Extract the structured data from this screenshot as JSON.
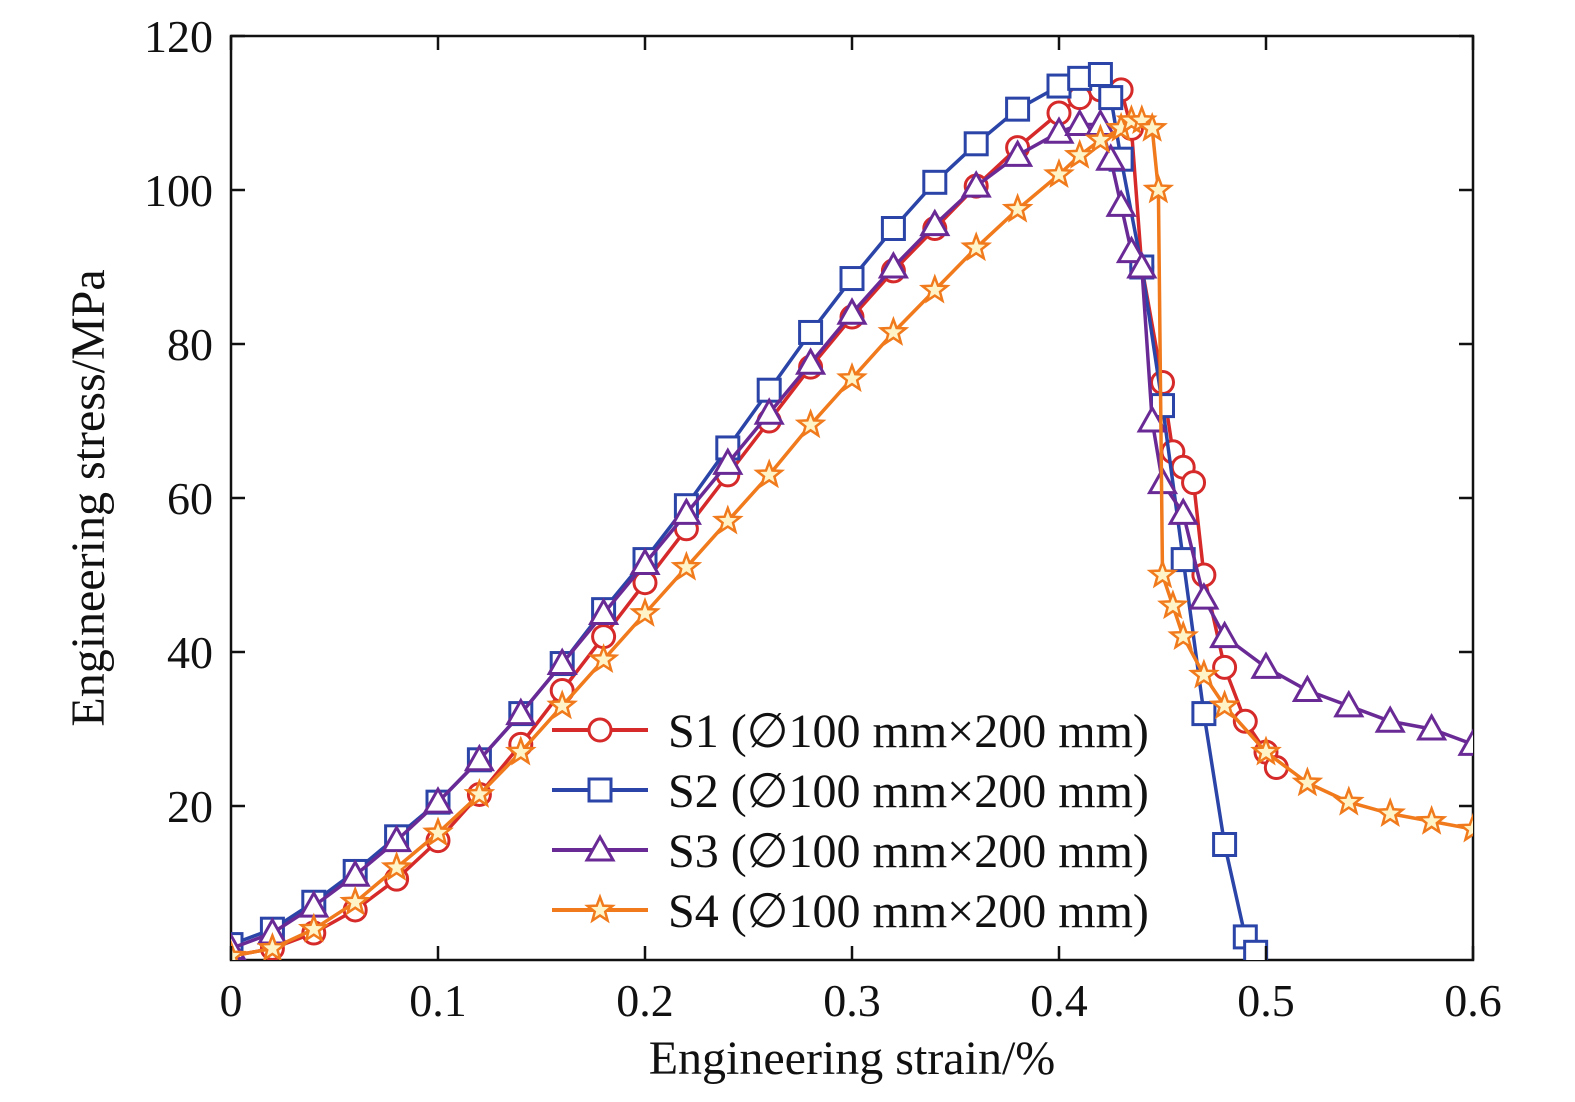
{
  "chart_data": {
    "type": "line",
    "title": "",
    "xlabel": "Engineering strain/%",
    "ylabel": "Engineering stress/MPa",
    "xlim": [
      0,
      0.6
    ],
    "ylim": [
      0,
      120
    ],
    "xticks": [
      0,
      0.1,
      0.2,
      0.3,
      0.4,
      0.5,
      0.6
    ],
    "xtick_labels": [
      "0",
      "0.1",
      "0.2",
      "0.3",
      "0.4",
      "0.5",
      "0.6"
    ],
    "yticks": [
      20,
      40,
      60,
      80,
      100,
      120
    ],
    "ytick_labels": [
      "20",
      "40",
      "60",
      "80",
      "100",
      "120"
    ],
    "grid": false,
    "legend_position": "bottom-center",
    "series": [
      {
        "name": "S1 (∅100 mm×200 mm)",
        "color": "#d62a2a",
        "marker": "circle",
        "x": [
          0.0,
          0.02,
          0.04,
          0.06,
          0.08,
          0.1,
          0.12,
          0.14,
          0.16,
          0.18,
          0.2,
          0.22,
          0.24,
          0.26,
          0.28,
          0.3,
          0.32,
          0.34,
          0.36,
          0.38,
          0.4,
          0.41,
          0.42,
          0.43,
          0.435,
          0.44,
          0.45,
          0.455,
          0.46,
          0.465,
          0.47,
          0.48,
          0.49,
          0.5,
          0.505
        ],
        "y": [
          0.5,
          1.5,
          3.5,
          6.5,
          10.5,
          15.5,
          21.5,
          28,
          35,
          42,
          49,
          56,
          63,
          70,
          77,
          83.5,
          89.5,
          95,
          100.5,
          105.5,
          110,
          112,
          113,
          113,
          108,
          90,
          75,
          66,
          64,
          62,
          50,
          38,
          31,
          27,
          25
        ]
      },
      {
        "name": "S2 (∅100 mm×200 mm)",
        "color": "#2a44a8",
        "marker": "square",
        "x": [
          0.0,
          0.02,
          0.04,
          0.06,
          0.08,
          0.1,
          0.12,
          0.14,
          0.16,
          0.18,
          0.2,
          0.22,
          0.24,
          0.26,
          0.28,
          0.3,
          0.32,
          0.34,
          0.36,
          0.38,
          0.4,
          0.41,
          0.42,
          0.425,
          0.43,
          0.44,
          0.45,
          0.46,
          0.47,
          0.48,
          0.49,
          0.495
        ],
        "y": [
          2,
          4,
          7.5,
          11.5,
          16,
          20.5,
          26,
          32,
          38.5,
          45.5,
          52,
          59,
          66.5,
          74,
          81.5,
          88.5,
          95,
          101,
          106,
          110.5,
          113.5,
          114.5,
          115,
          112,
          104,
          90,
          72,
          52,
          32,
          15,
          3,
          1
        ]
      },
      {
        "name": "S3 (∅100 mm×200 mm)",
        "color": "#6a2a96",
        "marker": "triangle",
        "x": [
          0.0,
          0.02,
          0.04,
          0.06,
          0.08,
          0.1,
          0.12,
          0.14,
          0.16,
          0.18,
          0.2,
          0.22,
          0.24,
          0.26,
          0.28,
          0.3,
          0.32,
          0.34,
          0.36,
          0.38,
          0.4,
          0.41,
          0.42,
          0.425,
          0.43,
          0.435,
          0.44,
          0.445,
          0.45,
          0.46,
          0.47,
          0.48,
          0.5,
          0.52,
          0.54,
          0.56,
          0.58,
          0.6
        ],
        "y": [
          1.5,
          3.5,
          7,
          11,
          15.5,
          20.5,
          26,
          32,
          38.5,
          45,
          51.5,
          58,
          64.5,
          71,
          77.5,
          84,
          90,
          95.5,
          100.5,
          104.5,
          107.5,
          108.5,
          108.5,
          104,
          98,
          92,
          90,
          70,
          62,
          58,
          47,
          42,
          38,
          35,
          33,
          31,
          30,
          28
        ]
      },
      {
        "name": "S4 (∅100 mm×200 mm)",
        "color": "#f07a1c",
        "marker": "star",
        "x": [
          0.0,
          0.02,
          0.04,
          0.06,
          0.08,
          0.1,
          0.12,
          0.14,
          0.16,
          0.18,
          0.2,
          0.22,
          0.24,
          0.26,
          0.28,
          0.3,
          0.32,
          0.34,
          0.36,
          0.38,
          0.4,
          0.41,
          0.42,
          0.43,
          0.435,
          0.44,
          0.445,
          0.448,
          0.45,
          0.455,
          0.46,
          0.47,
          0.48,
          0.5,
          0.52,
          0.54,
          0.56,
          0.58,
          0.6
        ],
        "y": [
          0.5,
          1.5,
          4,
          7.5,
          12,
          16.5,
          21.5,
          27,
          33,
          39,
          45,
          51,
          57,
          63,
          69.5,
          75.5,
          81.5,
          87,
          92.5,
          97.5,
          102,
          104.5,
          106.5,
          108,
          109,
          109,
          108,
          100,
          50,
          46,
          42,
          37,
          33,
          27,
          23,
          20.5,
          19,
          18,
          17
        ]
      }
    ]
  }
}
